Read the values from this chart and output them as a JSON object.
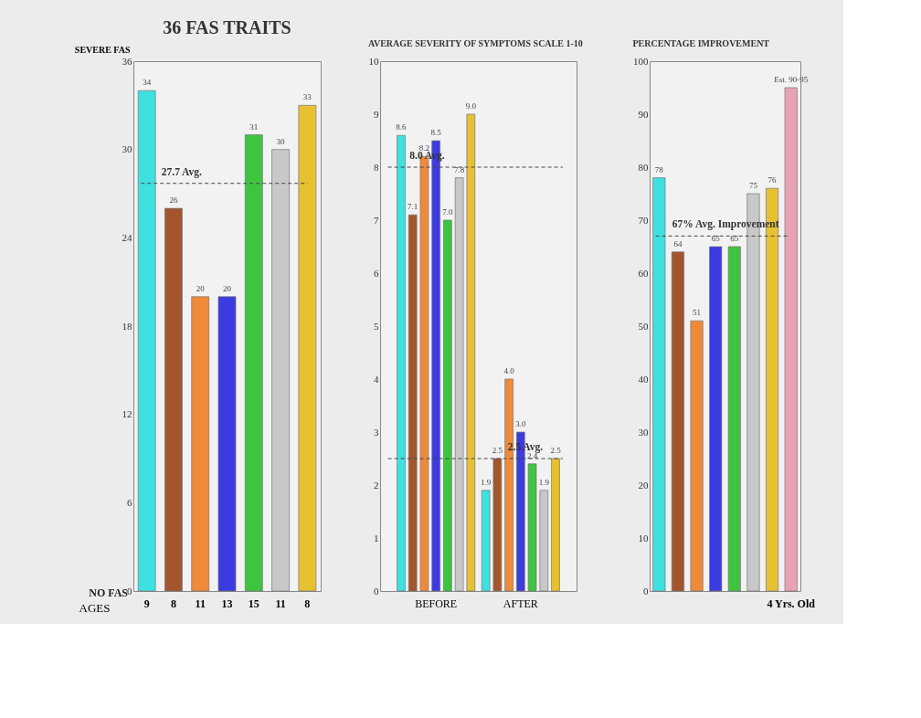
{
  "chart_data": [
    {
      "type": "bar",
      "title": "36 FAS TRAITS",
      "ylabel": "SEVERE FAS",
      "xlabel": "AGES",
      "categories": [
        "9",
        "8",
        "11",
        "13",
        "15",
        "11",
        "8"
      ],
      "values": [
        34,
        26,
        20,
        20,
        31,
        30,
        33
      ],
      "colors": [
        "#3fe0e0",
        "#a3552e",
        "#ef8a3a",
        "#3b3be0",
        "#3ec43e",
        "#c8c8c8",
        "#e6c132"
      ],
      "ylim": [
        0,
        36
      ],
      "yticks": [
        0,
        6,
        12,
        18,
        24,
        30,
        36
      ],
      "ref_lines": [
        {
          "axis": "y",
          "value": 27.7,
          "label": "27.7 Avg.",
          "line_style": "dashed"
        }
      ],
      "annotations": [
        "NO FAS"
      ],
      "data_labels": true,
      "grid": false
    },
    {
      "type": "bar",
      "title": "AVERAGE SEVERITY OF SYMPTOMS  SCALE 1-10",
      "categories": [
        "BEFORE",
        "AFTER"
      ],
      "series": [
        {
          "color": "#3fe0e0",
          "values": [
            8.6,
            1.9
          ],
          "value_labels": [
            "8.6",
            "1.9"
          ]
        },
        {
          "color": "#a3552e",
          "values": [
            7.1,
            2.5
          ],
          "value_labels": [
            "7.1",
            "2.5"
          ]
        },
        {
          "color": "#ef8a3a",
          "values": [
            8.2,
            4.0
          ],
          "value_labels": [
            "8.2",
            "4.0"
          ]
        },
        {
          "color": "#3b3be0",
          "values": [
            8.5,
            3.0
          ],
          "value_labels": [
            "8.5",
            "3.0"
          ]
        },
        {
          "color": "#3ec43e",
          "values": [
            7.0,
            2.4
          ],
          "value_labels": [
            "7.0",
            "2.4"
          ]
        },
        {
          "color": "#c8c8c8",
          "values": [
            7.8,
            1.9
          ],
          "value_labels": [
            "7.8",
            "1.9"
          ]
        },
        {
          "color": "#e6c132",
          "values": [
            9.0,
            2.5
          ],
          "value_labels": [
            "9.0",
            "2.5"
          ]
        }
      ],
      "ylim": [
        0,
        10
      ],
      "yticks": [
        0,
        1,
        2,
        3,
        4,
        5,
        6,
        7,
        8,
        9,
        10
      ],
      "ref_lines": [
        {
          "axis": "y",
          "value": 8.0,
          "label": "8.0 Avg.",
          "line_style": "dashed"
        },
        {
          "axis": "y",
          "value": 2.5,
          "label": "2.5 Avg.",
          "line_style": "dashed"
        }
      ],
      "data_labels": true,
      "grid": false
    },
    {
      "type": "bar",
      "title": "PERCENTAGE IMPROVEMENT",
      "categories": [
        null,
        null,
        null,
        null,
        null,
        null,
        null,
        "4 Yrs. Old"
      ],
      "values": [
        78,
        64,
        51,
        65,
        65,
        75,
        76,
        95
      ],
      "value_labels": [
        "78",
        "64",
        "51",
        "65",
        "65",
        "75",
        "76",
        "Est. 90-95"
      ],
      "colors": [
        "#3fe0e0",
        "#a3552e",
        "#ef8a3a",
        "#3b3be0",
        "#3ec43e",
        "#c8c8c8",
        "#e6c132",
        "#e8a2b4"
      ],
      "ylim": [
        0,
        100
      ],
      "yticks": [
        0,
        10,
        20,
        30,
        40,
        50,
        60,
        70,
        80,
        90,
        100
      ],
      "ref_lines": [
        {
          "axis": "y",
          "value": 67,
          "label": "67% Avg. Improvement",
          "line_style": "dashed"
        }
      ],
      "grid": false
    }
  ]
}
